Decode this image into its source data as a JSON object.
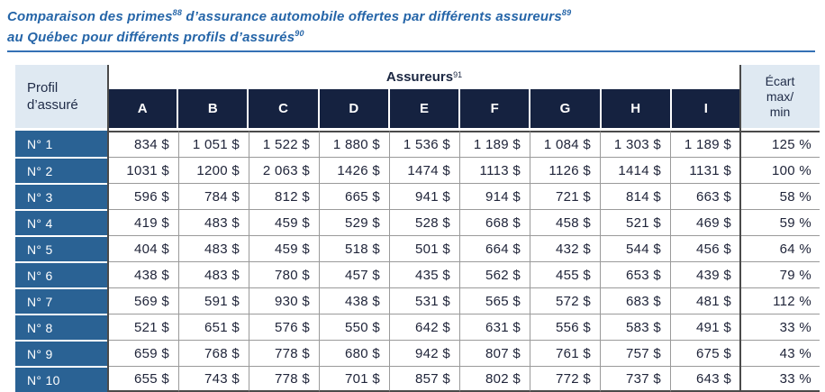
{
  "title": {
    "part1": "Comparaison des primes",
    "sup1": "88",
    "part2": " d’assurance automobile offertes par différents assureurs",
    "sup2": "89",
    "part3": "au Québec pour différents profils d’assurés",
    "sup3": "90"
  },
  "table": {
    "corner_header": "Profil d’assuré",
    "group_header": {
      "label": "Assureurs",
      "sup": "91"
    },
    "columns": [
      "A",
      "B",
      "C",
      "D",
      "E",
      "F",
      "G",
      "H",
      "I"
    ],
    "ecart_header_lines": [
      "Écart",
      "max/",
      "min"
    ],
    "rows": [
      {
        "label": "N° 1",
        "values": [
          "834 $",
          "1 051 $",
          "1 522 $",
          "1 880 $",
          "1 536 $",
          "1 189 $",
          "1 084 $",
          "1 303 $",
          "1 189 $"
        ],
        "ecart": "125 %"
      },
      {
        "label": "N° 2",
        "values": [
          "1031 $",
          "1200 $",
          "2 063 $",
          "1426 $",
          "1474 $",
          "1113 $",
          "1126 $",
          "1414 $",
          "1131 $"
        ],
        "ecart": "100 %"
      },
      {
        "label": "N° 3",
        "values": [
          "596 $",
          "784 $",
          "812 $",
          "665 $",
          "941 $",
          "914 $",
          "721 $",
          "814 $",
          "663 $"
        ],
        "ecart": "58 %"
      },
      {
        "label": "N° 4",
        "values": [
          "419 $",
          "483 $",
          "459 $",
          "529 $",
          "528 $",
          "668 $",
          "458 $",
          "521 $",
          "469 $"
        ],
        "ecart": "59 %"
      },
      {
        "label": "N° 5",
        "values": [
          "404 $",
          "483 $",
          "459 $",
          "518 $",
          "501 $",
          "664 $",
          "432 $",
          "544 $",
          "456 $"
        ],
        "ecart": "64 %"
      },
      {
        "label": "N° 6",
        "values": [
          "438 $",
          "483 $",
          "780 $",
          "457 $",
          "435 $",
          "562 $",
          "455 $",
          "653 $",
          "439 $"
        ],
        "ecart": "79 %"
      },
      {
        "label": "N° 7",
        "values": [
          "569 $",
          "591 $",
          "930 $",
          "438 $",
          "531 $",
          "565 $",
          "572 $",
          "683 $",
          "481 $"
        ],
        "ecart": "112 %"
      },
      {
        "label": "N° 8",
        "values": [
          "521 $",
          "651 $",
          "576 $",
          "550 $",
          "642 $",
          "631 $",
          "556 $",
          "583 $",
          "491 $"
        ],
        "ecart": "33 %"
      },
      {
        "label": "N° 9",
        "values": [
          "659 $",
          "768 $",
          "778 $",
          "680 $",
          "942 $",
          "807 $",
          "761 $",
          "757 $",
          "675 $"
        ],
        "ecart": "43 %"
      },
      {
        "label": "N° 10",
        "values": [
          "655 $",
          "743 $",
          "778 $",
          "701 $",
          "857 $",
          "802 $",
          "772 $",
          "737 $",
          "643 $"
        ],
        "ecart": "33 %"
      }
    ]
  },
  "colors": {
    "title_blue": "#2565a8",
    "rule_blue": "#3571b5",
    "header_navy": "#152240",
    "row_header_blue": "#2a6294",
    "light_header_fill": "#dfe9f2",
    "cell_text": "#20253a",
    "grid_gray": "#9a9a9a",
    "divider_dark": "#4a4a4a"
  }
}
